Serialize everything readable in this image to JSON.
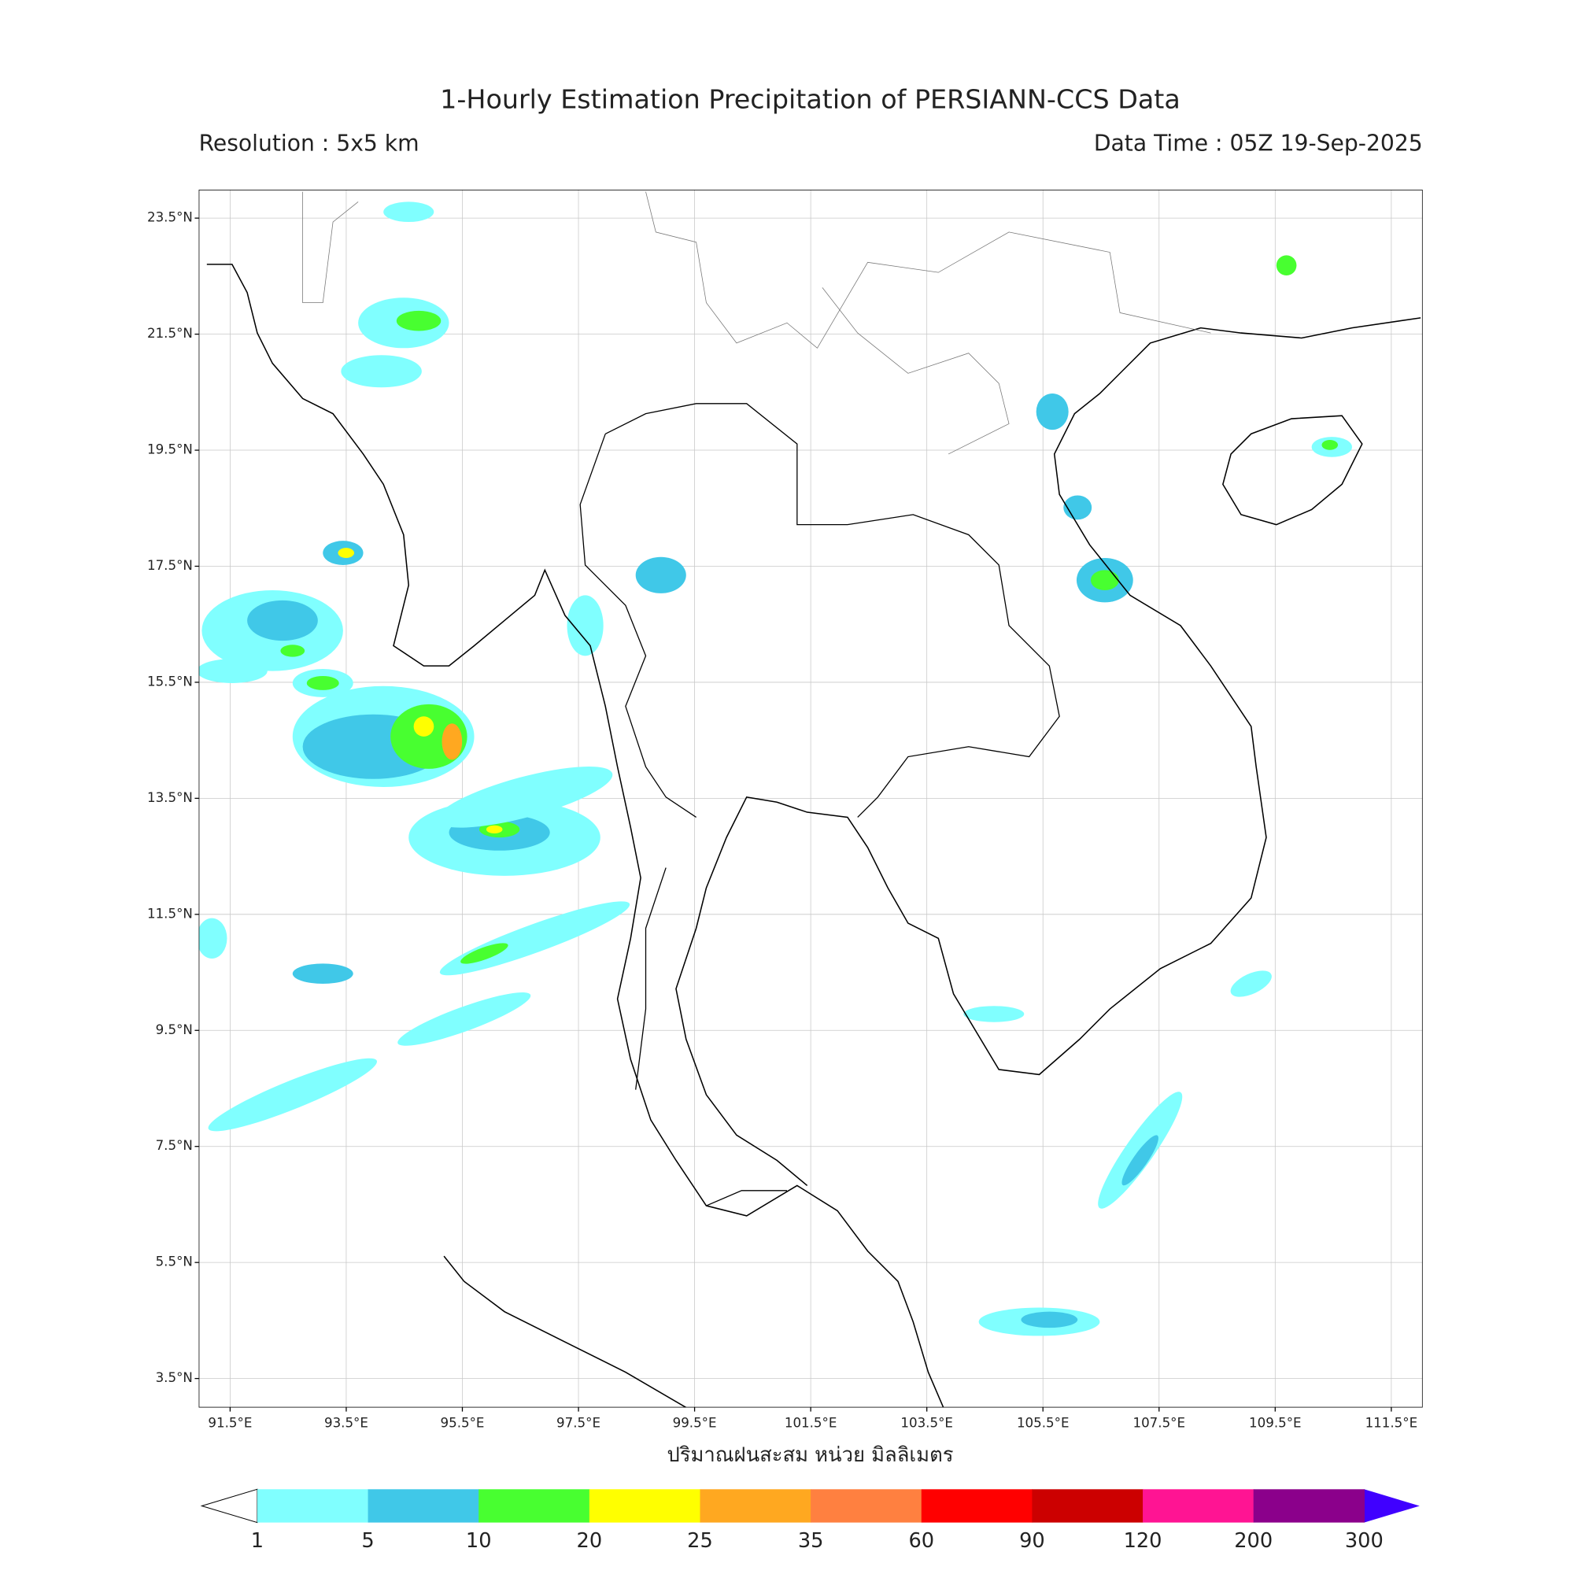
{
  "title": "1-Hourly Estimation Precipitation of PERSIANN-CCS Data",
  "resolution": "Resolution : 5x5 km",
  "data_time": "Data Time : 05Z 19-Sep-2025",
  "map": {
    "xlim": [
      90.96,
      112.04
    ],
    "ylim": [
      3.0,
      23.99
    ],
    "xticks": [
      {
        "value": 91.5,
        "label": "91.5°E"
      },
      {
        "value": 93.5,
        "label": "93.5°E"
      },
      {
        "value": 95.5,
        "label": "95.5°E"
      },
      {
        "value": 97.5,
        "label": "97.5°E"
      },
      {
        "value": 99.5,
        "label": "99.5°E"
      },
      {
        "value": 101.5,
        "label": "101.5°E"
      },
      {
        "value": 103.5,
        "label": "103.5°E"
      },
      {
        "value": 105.5,
        "label": "105.5°E"
      },
      {
        "value": 107.5,
        "label": "107.5°E"
      },
      {
        "value": 109.5,
        "label": "109.5°E"
      },
      {
        "value": 111.5,
        "label": "111.5°E"
      }
    ],
    "yticks": [
      {
        "value": 23.5,
        "label": "23.5°N"
      },
      {
        "value": 21.5,
        "label": "21.5°N"
      },
      {
        "value": 19.5,
        "label": "19.5°N"
      },
      {
        "value": 17.5,
        "label": "17.5°N"
      },
      {
        "value": 15.5,
        "label": "15.5°N"
      },
      {
        "value": 13.5,
        "label": "13.5°N"
      },
      {
        "value": 11.5,
        "label": "11.5°N"
      },
      {
        "value": 9.5,
        "label": "9.5°N"
      },
      {
        "value": 7.5,
        "label": "7.5°N"
      },
      {
        "value": 5.5,
        "label": "5.5°N"
      },
      {
        "value": 3.5,
        "label": "3.5°N"
      }
    ],
    "grid": true
  },
  "colorbar": {
    "label": "ปริมาณฝนสะสม หน่วย มิลลิเมตร",
    "levels": [
      1,
      5,
      10,
      20,
      25,
      35,
      60,
      90,
      120,
      200,
      300
    ],
    "colors": [
      "#80ffff",
      "#40c8e8",
      "#48ff30",
      "#ffff00",
      "#ffa820",
      "#ff8040",
      "#ff0000",
      "#cc0000",
      "#ff1493",
      "#8b008b"
    ],
    "under_color": "#ffffff",
    "over_color": "#4000ff"
  }
}
